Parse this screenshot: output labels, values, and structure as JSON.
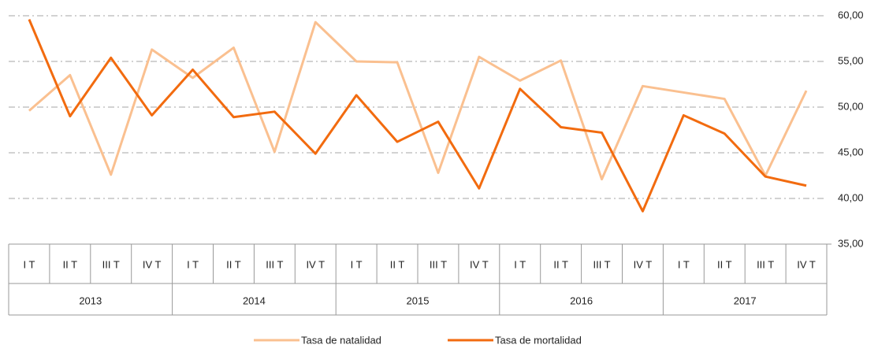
{
  "chart_data": {
    "type": "line",
    "categories": [
      "I T",
      "II T",
      "III T",
      "IV T",
      "I T",
      "II T",
      "III T",
      "IV T",
      "I T",
      "II T",
      "III T",
      "IV T",
      "I T",
      "II T",
      "III T",
      "IV T",
      "I T",
      "II T",
      "III T",
      "IV T"
    ],
    "years": [
      "2013",
      "2014",
      "2015",
      "2016",
      "2017"
    ],
    "series": [
      {
        "name": "Tasa de natalidad",
        "color": "#fac090",
        "values": [
          49.6,
          53.5,
          42.6,
          56.3,
          53.2,
          56.5,
          45.1,
          59.3,
          55.0,
          54.9,
          42.8,
          55.5,
          52.9,
          55.1,
          42.1,
          52.3,
          51.6,
          50.9,
          42.5,
          51.8
        ]
      },
      {
        "name": "Tasa de mortalidad",
        "color": "#f26b0f",
        "values": [
          59.6,
          49.0,
          55.4,
          49.1,
          54.1,
          48.9,
          49.5,
          44.9,
          51.3,
          46.2,
          48.4,
          41.1,
          52.0,
          47.8,
          47.2,
          38.6,
          49.1,
          47.1,
          42.4,
          41.4
        ]
      }
    ],
    "ylim": [
      35,
      60
    ],
    "yticks": [
      {
        "value": 35,
        "label": "35,00"
      },
      {
        "value": 40,
        "label": "40,00"
      },
      {
        "value": 45,
        "label": "45,00"
      },
      {
        "value": 50,
        "label": "50,00"
      },
      {
        "value": 55,
        "label": "55,00"
      },
      {
        "value": 60,
        "label": "60,00"
      }
    ],
    "grid": true,
    "legend": "bottom"
  }
}
